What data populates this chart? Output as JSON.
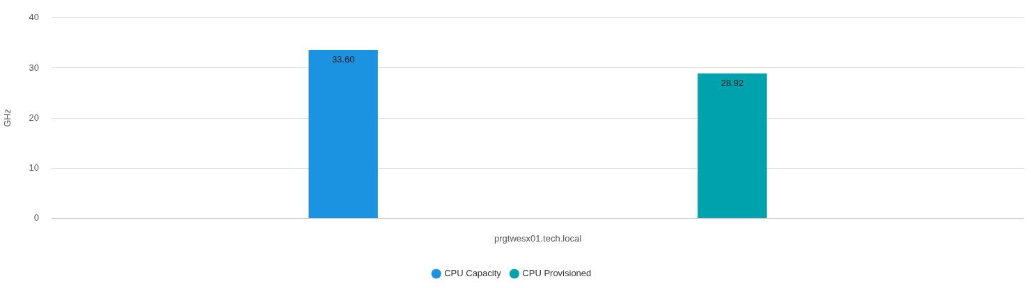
{
  "chart_data": {
    "type": "bar",
    "ylabel": "GHz",
    "categories": [
      "prgtwesx01.tech.local"
    ],
    "series": [
      {
        "name": "CPU Capacity",
        "color": "#1b93e0",
        "values": [
          33.6
        ],
        "value_labels": [
          "33.60"
        ]
      },
      {
        "name": "CPU Provisioned",
        "color": "#00a3ad",
        "values": [
          28.92
        ],
        "value_labels": [
          "28.92"
        ]
      }
    ],
    "ylim": [
      0,
      40
    ],
    "yticks": [
      0,
      10,
      20,
      30,
      40
    ],
    "grid": "y",
    "legend": "bottom"
  }
}
